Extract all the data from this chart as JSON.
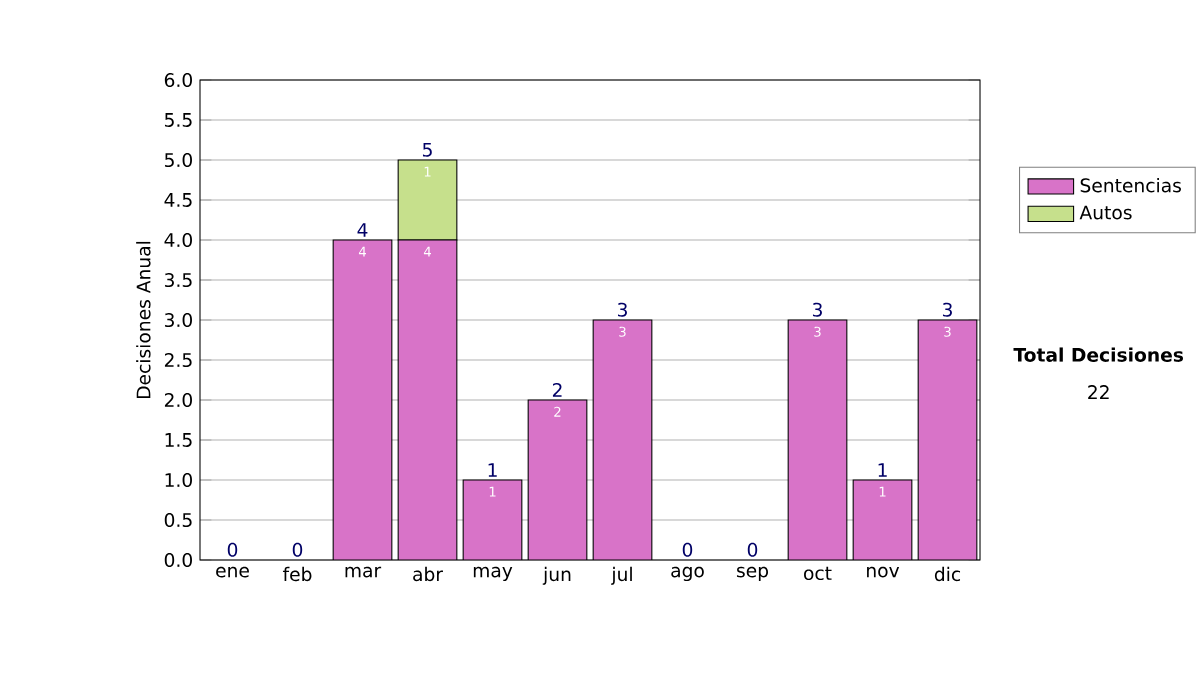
{
  "chart_data": {
    "type": "bar",
    "stacked": true,
    "categories": [
      "ene",
      "feb",
      "mar",
      "abr",
      "may",
      "jun",
      "jul",
      "ago",
      "sep",
      "oct",
      "nov",
      "dic"
    ],
    "series": [
      {
        "name": "Sentencias",
        "color": "#d873c8",
        "values": [
          0,
          0,
          4,
          4,
          1,
          2,
          3,
          0,
          0,
          3,
          1,
          3
        ],
        "value_labels": [
          null,
          null,
          "4",
          "4",
          "1",
          "2",
          "3",
          null,
          null,
          "3",
          "1",
          "3"
        ]
      },
      {
        "name": "Autos",
        "color": "#c6e08c",
        "values": [
          0,
          0,
          0,
          1,
          0,
          0,
          0,
          0,
          0,
          0,
          0,
          0
        ],
        "value_labels": [
          null,
          null,
          null,
          "1",
          null,
          null,
          null,
          null,
          null,
          null,
          null,
          null
        ]
      }
    ],
    "ylabel": "Decisiones Anual",
    "ylim": [
      0,
      6
    ],
    "yticks": [
      {
        "value": 0,
        "label": "0.0"
      },
      {
        "value": 0.5,
        "label": "0.5"
      },
      {
        "value": 1,
        "label": "1.0"
      },
      {
        "value": 1.5,
        "label": "1.5"
      },
      {
        "value": 2,
        "label": "2.0"
      },
      {
        "value": 2.5,
        "label": "2.5"
      },
      {
        "value": 3,
        "label": "3.0"
      },
      {
        "value": 3.5,
        "label": "3.5"
      },
      {
        "value": 4,
        "label": "4.0"
      },
      {
        "value": 4.5,
        "label": "4.5"
      },
      {
        "value": 5,
        "label": "5.0"
      },
      {
        "value": 5.5,
        "label": "5.5"
      },
      {
        "value": 6,
        "label": "6.0"
      }
    ],
    "grid": "y",
    "legend": "right",
    "totals": [
      "0",
      "0",
      "4",
      "5",
      "1",
      "2",
      "3",
      "0",
      "0",
      "3",
      "1",
      "3"
    ],
    "annotations": [
      "Total Decisiones",
      "22"
    ]
  }
}
